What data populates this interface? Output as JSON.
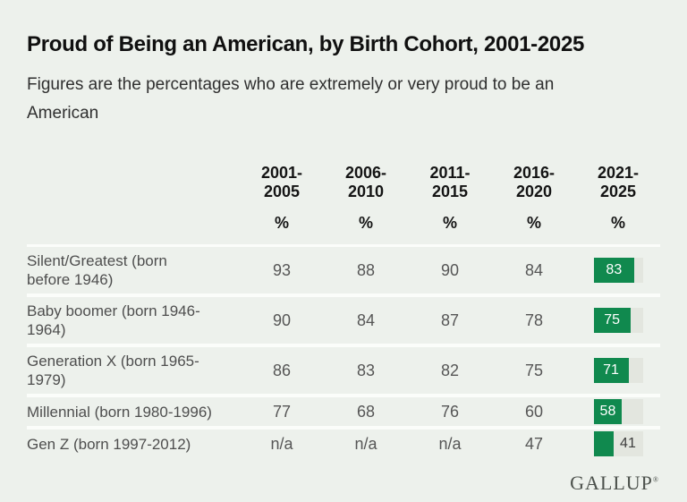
{
  "logo": {
    "text": "GALLUP",
    "mark": "®"
  },
  "colors": {
    "bg": "#edf1ec",
    "divider": "#fbfdfa",
    "track": "#e3e6df",
    "green": "#10894e"
  },
  "chart_data": {
    "type": "table",
    "title": "Proud of Being an American, by Birth Cohort, 2001-2025",
    "subtitle": "Figures are the percentages who are extremely or very proud to be an American",
    "unit": "%",
    "columns": [
      "2001-2005",
      "2006-2010",
      "2011-2015",
      "2016-2020",
      "2021-2025"
    ],
    "rows": [
      {
        "label": "Silent/Greatest (born\nbefore 1946)",
        "values": [
          "93",
          "88",
          "90",
          "84",
          "83"
        ]
      },
      {
        "label": "Baby boomer (born 1946-\n1964)",
        "values": [
          "90",
          "84",
          "87",
          "78",
          "75"
        ]
      },
      {
        "label": "Generation X (born 1965-\n1979)",
        "values": [
          "86",
          "83",
          "82",
          "75",
          "71"
        ]
      },
      {
        "label": "Millennial (born 1980-1996)",
        "values": [
          "77",
          "68",
          "76",
          "60",
          "58"
        ]
      },
      {
        "label": "Gen Z (born 1997-2012)",
        "values": [
          "n/a",
          "n/a",
          "n/a",
          "47",
          "41"
        ]
      }
    ],
    "last_column_style": "bar",
    "bar_scale_max": 100,
    "legend_position": "none",
    "grid": false
  }
}
